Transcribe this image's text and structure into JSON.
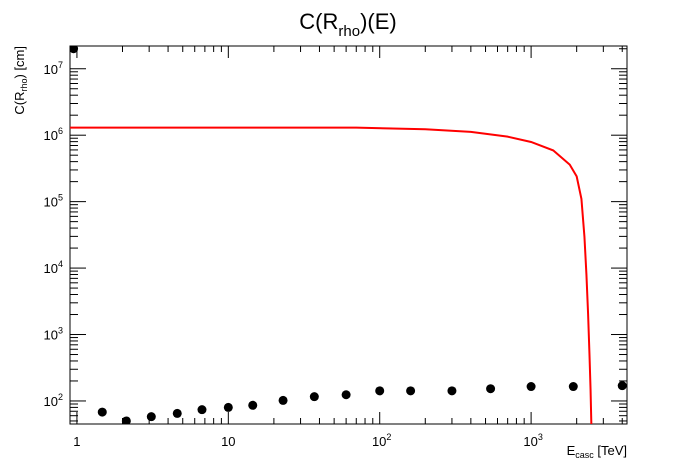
{
  "chart_data": {
    "type": "scatter",
    "title": {
      "main": "C(R",
      "sub": "rho",
      "tail": ")(E)"
    },
    "xlabel": {
      "main": "E",
      "sub": "casc",
      "tail": " [TeV]"
    },
    "ylabel": {
      "main": "C(R",
      "sub": "rho",
      "tail": ") [cm]"
    },
    "xscale": "log",
    "yscale": "log",
    "xlim": [
      0.9,
      4300
    ],
    "ylim": [
      45,
      22000000
    ],
    "x_tick_labels": [
      {
        "value": 1,
        "base": "1",
        "exp": ""
      },
      {
        "value": 10,
        "base": "10",
        "exp": ""
      },
      {
        "value": 100,
        "base": "10",
        "exp": "2"
      },
      {
        "value": 1000,
        "base": "10",
        "exp": "3"
      }
    ],
    "y_tick_labels": [
      {
        "value": 100,
        "base": "10",
        "exp": "2"
      },
      {
        "value": 1000,
        "base": "10",
        "exp": "3"
      },
      {
        "value": 10000,
        "base": "10",
        "exp": "4"
      },
      {
        "value": 100000,
        "base": "10",
        "exp": "5"
      },
      {
        "value": 1000000,
        "base": "10",
        "exp": "6"
      },
      {
        "value": 10000000,
        "base": "10",
        "exp": "7"
      }
    ],
    "series": [
      {
        "type": "scatter",
        "color": "#000000",
        "x": [
          0.95,
          1.47,
          2.12,
          3.1,
          4.6,
          6.7,
          10,
          14.5,
          23,
          37,
          60,
          100,
          160,
          300,
          540,
          1000,
          1900,
          4000
        ],
        "y": [
          20000000,
          68,
          50,
          58,
          65,
          74,
          80,
          86,
          102,
          116,
          124,
          142,
          142,
          142,
          153,
          165,
          165,
          170
        ]
      },
      {
        "type": "line",
        "color": "#ff0000",
        "x": [
          0.9,
          10,
          70,
          200,
          400,
          700,
          1000,
          1400,
          1800,
          2000,
          2150,
          2250,
          2320,
          2380,
          2430,
          2470,
          2500
        ],
        "y": [
          1300000,
          1300000,
          1300000,
          1230000,
          1120000,
          950000,
          790000,
          590000,
          360000,
          240000,
          110000,
          30000,
          8000,
          2000,
          500,
          150,
          45
        ]
      }
    ]
  }
}
